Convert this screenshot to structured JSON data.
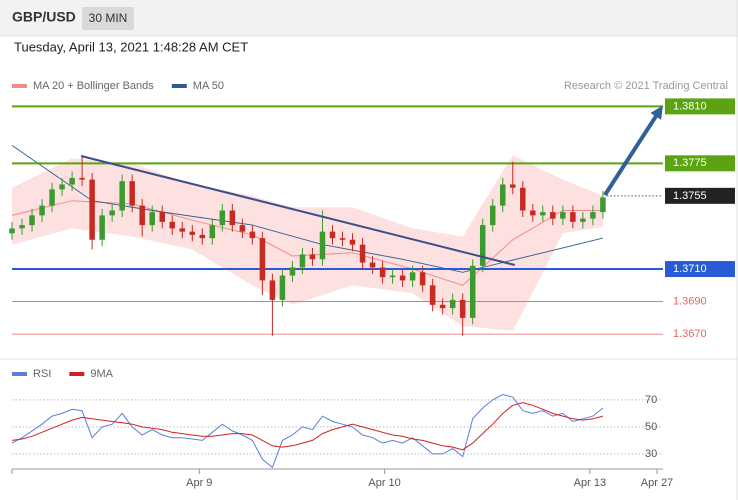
{
  "header": {
    "symbol": "GBP/USD",
    "interval": "30 MIN",
    "timestamp": "Tuesday, April 13, 2021 1:48:28 AM CET"
  },
  "chart_data": [
    {
      "type": "candlestick",
      "source": "Research © 2021 Trading Central",
      "up_color": "#3d9a2f",
      "down_color": "#c42b22",
      "xlim": [
        0,
        65
      ],
      "ylim": [
        1.3659,
        1.3817
      ],
      "x": [
        0,
        1,
        2,
        3,
        4,
        5,
        6,
        7,
        8,
        9,
        10,
        11,
        12,
        13,
        14,
        15,
        16,
        17,
        18,
        19,
        20,
        21,
        22,
        23,
        24,
        25,
        26,
        27,
        28,
        29,
        30,
        31,
        32,
        33,
        34,
        35,
        36,
        37,
        38,
        39,
        40,
        41,
        42,
        43,
        44,
        45,
        46,
        47,
        48,
        49,
        50,
        51,
        52,
        53,
        54,
        55,
        56,
        57,
        58,
        59
      ],
      "open": [
        1.3732,
        1.3735,
        1.3737,
        1.3743,
        1.3749,
        1.3759,
        1.3762,
        1.3766,
        1.3765,
        1.3728,
        1.3743,
        1.3746,
        1.3764,
        1.3749,
        1.3737,
        1.3745,
        1.3739,
        1.3735,
        1.3733,
        1.3731,
        1.3729,
        1.3737,
        1.3746,
        1.3737,
        1.3733,
        1.3729,
        1.3703,
        1.3691,
        1.3706,
        1.3711,
        1.3719,
        1.3716,
        1.3733,
        1.3729,
        1.3728,
        1.3725,
        1.3714,
        1.3711,
        1.3705,
        1.3706,
        1.3703,
        1.3708,
        1.37,
        1.3688,
        1.3686,
        1.3691,
        1.368,
        1.3712,
        1.3737,
        1.3749,
        1.3762,
        1.376,
        1.3746,
        1.3743,
        1.3745,
        1.3741,
        1.3745,
        1.3739,
        1.3741,
        1.3745
      ],
      "high": [
        1.3739,
        1.3741,
        1.3747,
        1.3753,
        1.3763,
        1.3766,
        1.377,
        1.378,
        1.3769,
        1.3747,
        1.375,
        1.3768,
        1.3768,
        1.3753,
        1.3749,
        1.3749,
        1.3743,
        1.3739,
        1.3737,
        1.3735,
        1.3741,
        1.375,
        1.375,
        1.3741,
        1.3737,
        1.3733,
        1.3707,
        1.371,
        1.3715,
        1.3723,
        1.3723,
        1.3746,
        1.3737,
        1.3733,
        1.3732,
        1.3729,
        1.3718,
        1.3715,
        1.371,
        1.371,
        1.3712,
        1.3712,
        1.3704,
        1.3692,
        1.3695,
        1.3695,
        1.3716,
        1.3741,
        1.3753,
        1.3766,
        1.3776,
        1.3764,
        1.375,
        1.3749,
        1.3749,
        1.3749,
        1.3749,
        1.3745,
        1.3749,
        1.3758
      ],
      "low": [
        1.3728,
        1.3731,
        1.3733,
        1.3739,
        1.3745,
        1.3755,
        1.3758,
        1.3761,
        1.3722,
        1.3724,
        1.3739,
        1.3742,
        1.3745,
        1.373,
        1.3733,
        1.3735,
        1.3731,
        1.3729,
        1.3727,
        1.3725,
        1.3725,
        1.3733,
        1.3733,
        1.3729,
        1.3725,
        1.3694,
        1.3669,
        1.3687,
        1.3702,
        1.3707,
        1.3712,
        1.3712,
        1.3725,
        1.3724,
        1.3721,
        1.371,
        1.3707,
        1.3701,
        1.3701,
        1.3699,
        1.3699,
        1.3696,
        1.3684,
        1.3682,
        1.3682,
        1.3669,
        1.3676,
        1.3708,
        1.3733,
        1.3745,
        1.3756,
        1.3742,
        1.3739,
        1.3739,
        1.3737,
        1.3737,
        1.3735,
        1.3735,
        1.3737,
        1.3741
      ],
      "close": [
        1.3735,
        1.3737,
        1.3743,
        1.3749,
        1.3759,
        1.3762,
        1.3766,
        1.3765,
        1.3728,
        1.3743,
        1.3746,
        1.3764,
        1.3749,
        1.3737,
        1.3745,
        1.3739,
        1.3735,
        1.3733,
        1.3731,
        1.3729,
        1.3737,
        1.3746,
        1.3737,
        1.3733,
        1.3729,
        1.3703,
        1.3691,
        1.3706,
        1.3711,
        1.3719,
        1.3716,
        1.3733,
        1.3729,
        1.3728,
        1.3725,
        1.3714,
        1.3711,
        1.3705,
        1.3706,
        1.3703,
        1.3708,
        1.37,
        1.3688,
        1.3686,
        1.3691,
        1.368,
        1.3712,
        1.3737,
        1.3749,
        1.3762,
        1.376,
        1.3746,
        1.3743,
        1.3745,
        1.3741,
        1.3745,
        1.3739,
        1.3741,
        1.3745,
        1.3754
      ],
      "series": [
        {
          "name": "MA 20 + Bollinger Bands",
          "color": "#f08c8c",
          "band_color": "#fde0e0",
          "x": [
            0,
            6,
            12,
            18,
            24,
            28,
            34,
            40,
            45,
            50,
            55,
            59
          ],
          "values": [
            1.3743,
            1.3752,
            1.375,
            1.374,
            1.3731,
            1.3718,
            1.372,
            1.371,
            1.37,
            1.3728,
            1.3746,
            1.3746
          ],
          "upper": [
            1.376,
            1.3778,
            1.3775,
            1.3762,
            1.3755,
            1.3748,
            1.3748,
            1.3735,
            1.373,
            1.378,
            1.3765,
            1.3755
          ],
          "lower": [
            1.3725,
            1.3735,
            1.373,
            1.3722,
            1.37,
            1.3688,
            1.37,
            1.3695,
            1.3675,
            1.3672,
            1.3732,
            1.3736
          ]
        },
        {
          "name": "MA 50",
          "color": "#2e5b8f",
          "x": [
            0,
            8,
            14,
            24,
            31,
            39,
            45,
            49,
            55,
            59
          ],
          "values": [
            1.3786,
            1.3752,
            1.3746,
            1.3737,
            1.3725,
            1.3716,
            1.3708,
            1.3714,
            1.3723,
            1.3729
          ]
        }
      ],
      "levels": [
        {
          "value": 1.381,
          "label": "1.3810",
          "color": "#5ba312",
          "style": "tag"
        },
        {
          "value": 1.3775,
          "label": "1.3775",
          "color": "#5ba312",
          "style": "tag"
        },
        {
          "value": 1.3755,
          "label": "1.3755",
          "color": "#222222",
          "style": "current"
        },
        {
          "value": 1.371,
          "label": "1.3710",
          "color": "#2a5bd7",
          "style": "tag"
        },
        {
          "value": 1.369,
          "label": "1.3690",
          "color": "#e06666",
          "style": "text"
        },
        {
          "value": 1.367,
          "label": "1.3670",
          "color": "#e06666",
          "style": "text"
        }
      ],
      "trendline": {
        "x": [
          6.9,
          50.2
        ],
        "values": [
          1.37795,
          1.37125
        ],
        "color": "#3b4f8a"
      },
      "arrow": {
        "x": [
          59.2,
          64.7
        ],
        "values": [
          1.37555,
          1.38078
        ],
        "color": "#2f6096"
      }
    },
    {
      "type": "line",
      "xlim": [
        0,
        65
      ],
      "ylim": [
        24,
        81
      ],
      "yticks": [
        30,
        50,
        70
      ],
      "grid": true,
      "xticks": [
        {
          "value": 18.7,
          "label": "Apr 9"
        },
        {
          "value": 37.2,
          "label": "Apr 10"
        },
        {
          "value": 57.7,
          "label": "Apr 13"
        },
        {
          "value": 64.4,
          "label": "Apr 27"
        }
      ],
      "x": [
        0,
        1,
        2,
        3,
        4,
        5,
        6,
        7,
        8,
        9,
        10,
        11,
        12,
        13,
        14,
        15,
        16,
        17,
        18,
        19,
        20,
        21,
        22,
        23,
        24,
        25,
        26,
        27,
        28,
        29,
        30,
        31,
        32,
        33,
        34,
        35,
        36,
        37,
        38,
        39,
        40,
        41,
        42,
        43,
        44,
        45,
        46,
        47,
        48,
        49,
        50,
        51,
        52,
        53,
        54,
        55,
        56,
        57,
        58,
        59
      ],
      "series": [
        {
          "name": "RSI",
          "color": "#5b7fd6",
          "values": [
            38,
            42,
            47,
            52,
            58,
            60,
            63,
            62,
            42,
            50,
            52,
            60,
            50,
            44,
            48,
            44,
            42,
            42,
            41,
            40,
            46,
            52,
            47,
            44,
            40,
            26,
            20,
            40,
            44,
            50,
            48,
            58,
            54,
            52,
            50,
            44,
            42,
            38,
            40,
            38,
            42,
            36,
            30,
            30,
            34,
            28,
            56,
            64,
            70,
            74,
            72,
            62,
            60,
            62,
            58,
            60,
            54,
            56,
            58,
            64
          ]
        },
        {
          "name": "9MA",
          "color": "#d42020",
          "values": [
            40,
            41,
            43,
            46,
            49,
            52,
            55,
            57,
            56,
            55,
            54,
            53,
            52,
            50,
            49,
            48,
            46,
            45,
            44,
            43,
            43,
            44,
            45,
            45,
            44,
            40,
            36,
            35,
            36,
            38,
            40,
            45,
            48,
            50,
            52,
            50,
            48,
            46,
            44,
            43,
            41,
            40,
            38,
            36,
            35,
            33,
            38,
            45,
            52,
            60,
            66,
            68,
            66,
            63,
            60,
            58,
            56,
            55,
            56,
            58
          ]
        }
      ]
    }
  ]
}
